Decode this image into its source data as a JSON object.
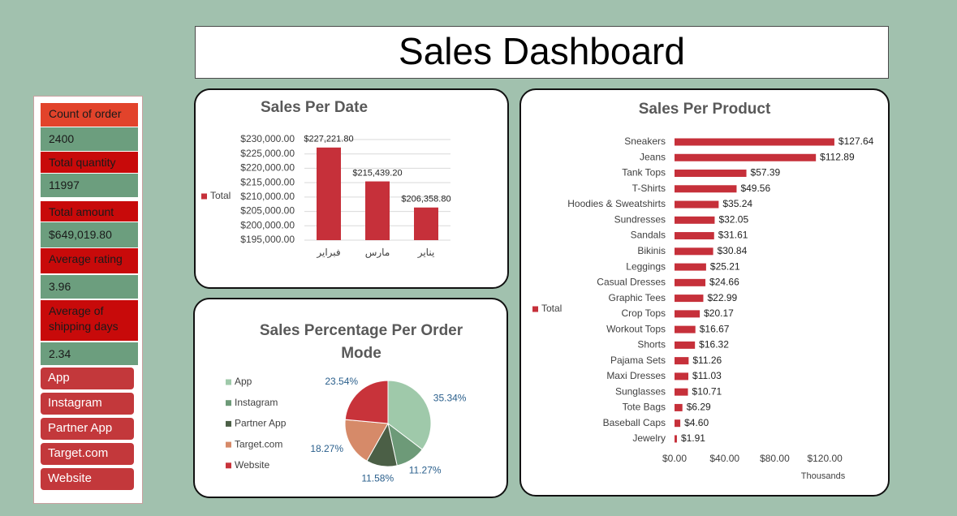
{
  "header": {
    "title": "Sales Dashboard"
  },
  "kpis": [
    {
      "label": "Count of order",
      "value": "2400"
    },
    {
      "label": "Total quantity",
      "value": "11997"
    },
    {
      "label": "Total amount",
      "value": "$649,019.80"
    },
    {
      "label": "Average rating",
      "value": "3.96"
    },
    {
      "label": "Average of shipping days",
      "value": "2.34"
    }
  ],
  "slicer": [
    "App",
    "Instagram",
    "Partner App",
    "Target.com",
    "Website"
  ],
  "chart_data": [
    {
      "type": "bar",
      "title": "Sales Per Date",
      "categories": [
        "فبراير",
        "مارس",
        "يناير"
      ],
      "series": [
        {
          "name": "Total",
          "color": "#c6303a",
          "values": [
            227221.8,
            215439.2,
            206358.8
          ],
          "value_labels": [
            "$227,221.80",
            "$215,439.20",
            "$206,358.80"
          ]
        }
      ],
      "ylim": [
        195000,
        230000
      ],
      "yticks": [
        {
          "value": 195000,
          "label": "$195,000.00"
        },
        {
          "value": 200000,
          "label": "$200,000.00"
        },
        {
          "value": 205000,
          "label": "$205,000.00"
        },
        {
          "value": 210000,
          "label": "$210,000.00"
        },
        {
          "value": 215000,
          "label": "$215,000.00"
        },
        {
          "value": 220000,
          "label": "$220,000.00"
        },
        {
          "value": 225000,
          "label": "$225,000.00"
        },
        {
          "value": 230000,
          "label": "$230,000.00"
        }
      ],
      "grid": true,
      "legend": "left"
    },
    {
      "type": "pie",
      "title": "Sales Percentage Per Order Mode",
      "categories": [
        "App",
        "Instagram",
        "Partner App",
        "Target.com",
        "Website"
      ],
      "values": [
        35.34,
        11.27,
        11.58,
        18.27,
        23.54
      ],
      "value_labels": [
        "35.34%",
        "11.27%",
        "11.58%",
        "18.27%",
        "23.54%"
      ],
      "colors": [
        "#9fc9aa",
        "#6d9a78",
        "#4b5f46",
        "#d68a69",
        "#c8333a"
      ],
      "legend": "left"
    },
    {
      "type": "bar",
      "orientation": "horizontal",
      "title": "Sales Per Product",
      "categories": [
        "Sneakers",
        "Jeans",
        "Tank Tops",
        "T-Shirts",
        "Hoodies & Sweatshirts",
        "Sundresses",
        "Sandals",
        "Bikinis",
        "Leggings",
        "Casual Dresses",
        "Graphic Tees",
        "Crop Tops",
        "Workout Tops",
        "Shorts",
        "Pajama Sets",
        "Maxi Dresses",
        "Sunglasses",
        "Tote Bags",
        "Baseball Caps",
        "Jewelry"
      ],
      "series": [
        {
          "name": "Total",
          "color": "#c6303a",
          "values": [
            127.64,
            112.89,
            57.39,
            49.56,
            35.24,
            32.05,
            31.61,
            30.84,
            25.21,
            24.66,
            22.99,
            20.17,
            16.67,
            16.32,
            11.26,
            11.03,
            10.71,
            6.29,
            4.6,
            1.91
          ],
          "value_labels": [
            "$127.64",
            "$112.89",
            "$57.39",
            "$49.56",
            "$35.24",
            "$32.05",
            "$31.61",
            "$30.84",
            "$25.21",
            "$24.66",
            "$22.99",
            "$20.17",
            "$16.67",
            "$16.32",
            "$11.26",
            "$11.03",
            "$10.71",
            "$6.29",
            "$4.60",
            "$1.91"
          ]
        }
      ],
      "xlim": [
        0,
        140
      ],
      "xticks": [
        {
          "value": 0,
          "label": "$0.00"
        },
        {
          "value": 40,
          "label": "$40.00"
        },
        {
          "value": 80,
          "label": "$80.00"
        },
        {
          "value": 120,
          "label": "$120.00"
        }
      ],
      "xlabel": "Thousands",
      "grid": false,
      "legend": "left"
    }
  ]
}
